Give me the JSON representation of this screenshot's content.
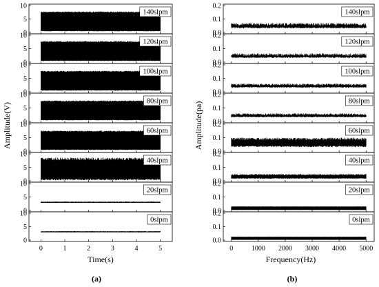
{
  "panels": [
    {
      "id": "a",
      "panel_label": "(a)",
      "chart_data": {
        "type": "line",
        "xlabel": "Time(s)",
        "ylabel": "Amplitude(V)",
        "xlim": [
          -0.5,
          5.5
        ],
        "xticks": [
          0,
          1,
          2,
          3,
          4,
          5
        ],
        "ylim": [
          0,
          10
        ],
        "yticks": [
          0,
          5,
          10
        ],
        "grid": false,
        "legend_placement": "top-right",
        "series": [
          {
            "name": "140slpm",
            "x_range": [
              0,
              5
            ],
            "base": 0.4,
            "peak": 7.8,
            "noise": 0.4
          },
          {
            "name": "120slpm",
            "x_range": [
              0,
              5
            ],
            "base": 0.4,
            "peak": 7.8,
            "noise": 0.4
          },
          {
            "name": "100slpm",
            "x_range": [
              0,
              5
            ],
            "base": 0.4,
            "peak": 7.8,
            "noise": 0.4
          },
          {
            "name": "80slpm",
            "x_range": [
              0,
              5
            ],
            "base": 0.4,
            "peak": 7.8,
            "noise": 0.4
          },
          {
            "name": "60slpm",
            "x_range": [
              0,
              5
            ],
            "base": 0.4,
            "peak": 7.6,
            "noise": 0.4
          },
          {
            "name": "40slpm",
            "x_range": [
              0,
              5
            ],
            "base": 0.2,
            "peak": 8.6,
            "noise": 1.0
          },
          {
            "name": "20slpm",
            "x_range": [
              0,
              5
            ],
            "base": 2.8,
            "peak": 3.3,
            "noise": 0.2
          },
          {
            "name": "0slpm",
            "x_range": [
              0,
              5
            ],
            "base": 3.0,
            "peak": 3.2,
            "noise": 0.1
          }
        ]
      }
    },
    {
      "id": "b",
      "panel_label": "(b)",
      "chart_data": {
        "type": "line",
        "xlabel": "Frequency(Hz)",
        "ylabel": "Amplitude(pa)",
        "xlim": [
          -300,
          5300
        ],
        "xticks": [
          0,
          1000,
          2000,
          3000,
          4000,
          5000
        ],
        "ylim": [
          0,
          0.2
        ],
        "yticks": [
          0.0,
          0.1,
          0.2
        ],
        "grid": false,
        "legend_placement": "top-right",
        "series": [
          {
            "name": "140slpm",
            "x_range": [
              0,
              5000
            ],
            "base": 0.03,
            "peak": 0.07,
            "noise": 0.02
          },
          {
            "name": "120slpm",
            "x_range": [
              0,
              5000
            ],
            "base": 0.03,
            "peak": 0.065,
            "noise": 0.02
          },
          {
            "name": "100slpm",
            "x_range": [
              0,
              5000
            ],
            "base": 0.03,
            "peak": 0.06,
            "noise": 0.015
          },
          {
            "name": "80slpm",
            "x_range": [
              0,
              5000
            ],
            "base": 0.03,
            "peak": 0.06,
            "noise": 0.015
          },
          {
            "name": "60slpm",
            "x_range": [
              0,
              5000
            ],
            "base": 0.03,
            "peak": 0.1,
            "noise": 0.02
          },
          {
            "name": "40slpm",
            "x_range": [
              0,
              5000
            ],
            "base": 0.015,
            "peak": 0.05,
            "noise": 0.01
          },
          {
            "name": "20slpm",
            "x_range": [
              0,
              5000
            ],
            "base": 0.003,
            "peak": 0.03,
            "noise": 0.002
          },
          {
            "name": "0slpm",
            "x_range": [
              0,
              5000
            ],
            "base": 0.002,
            "peak": 0.025,
            "noise": 0.001
          }
        ]
      }
    }
  ]
}
